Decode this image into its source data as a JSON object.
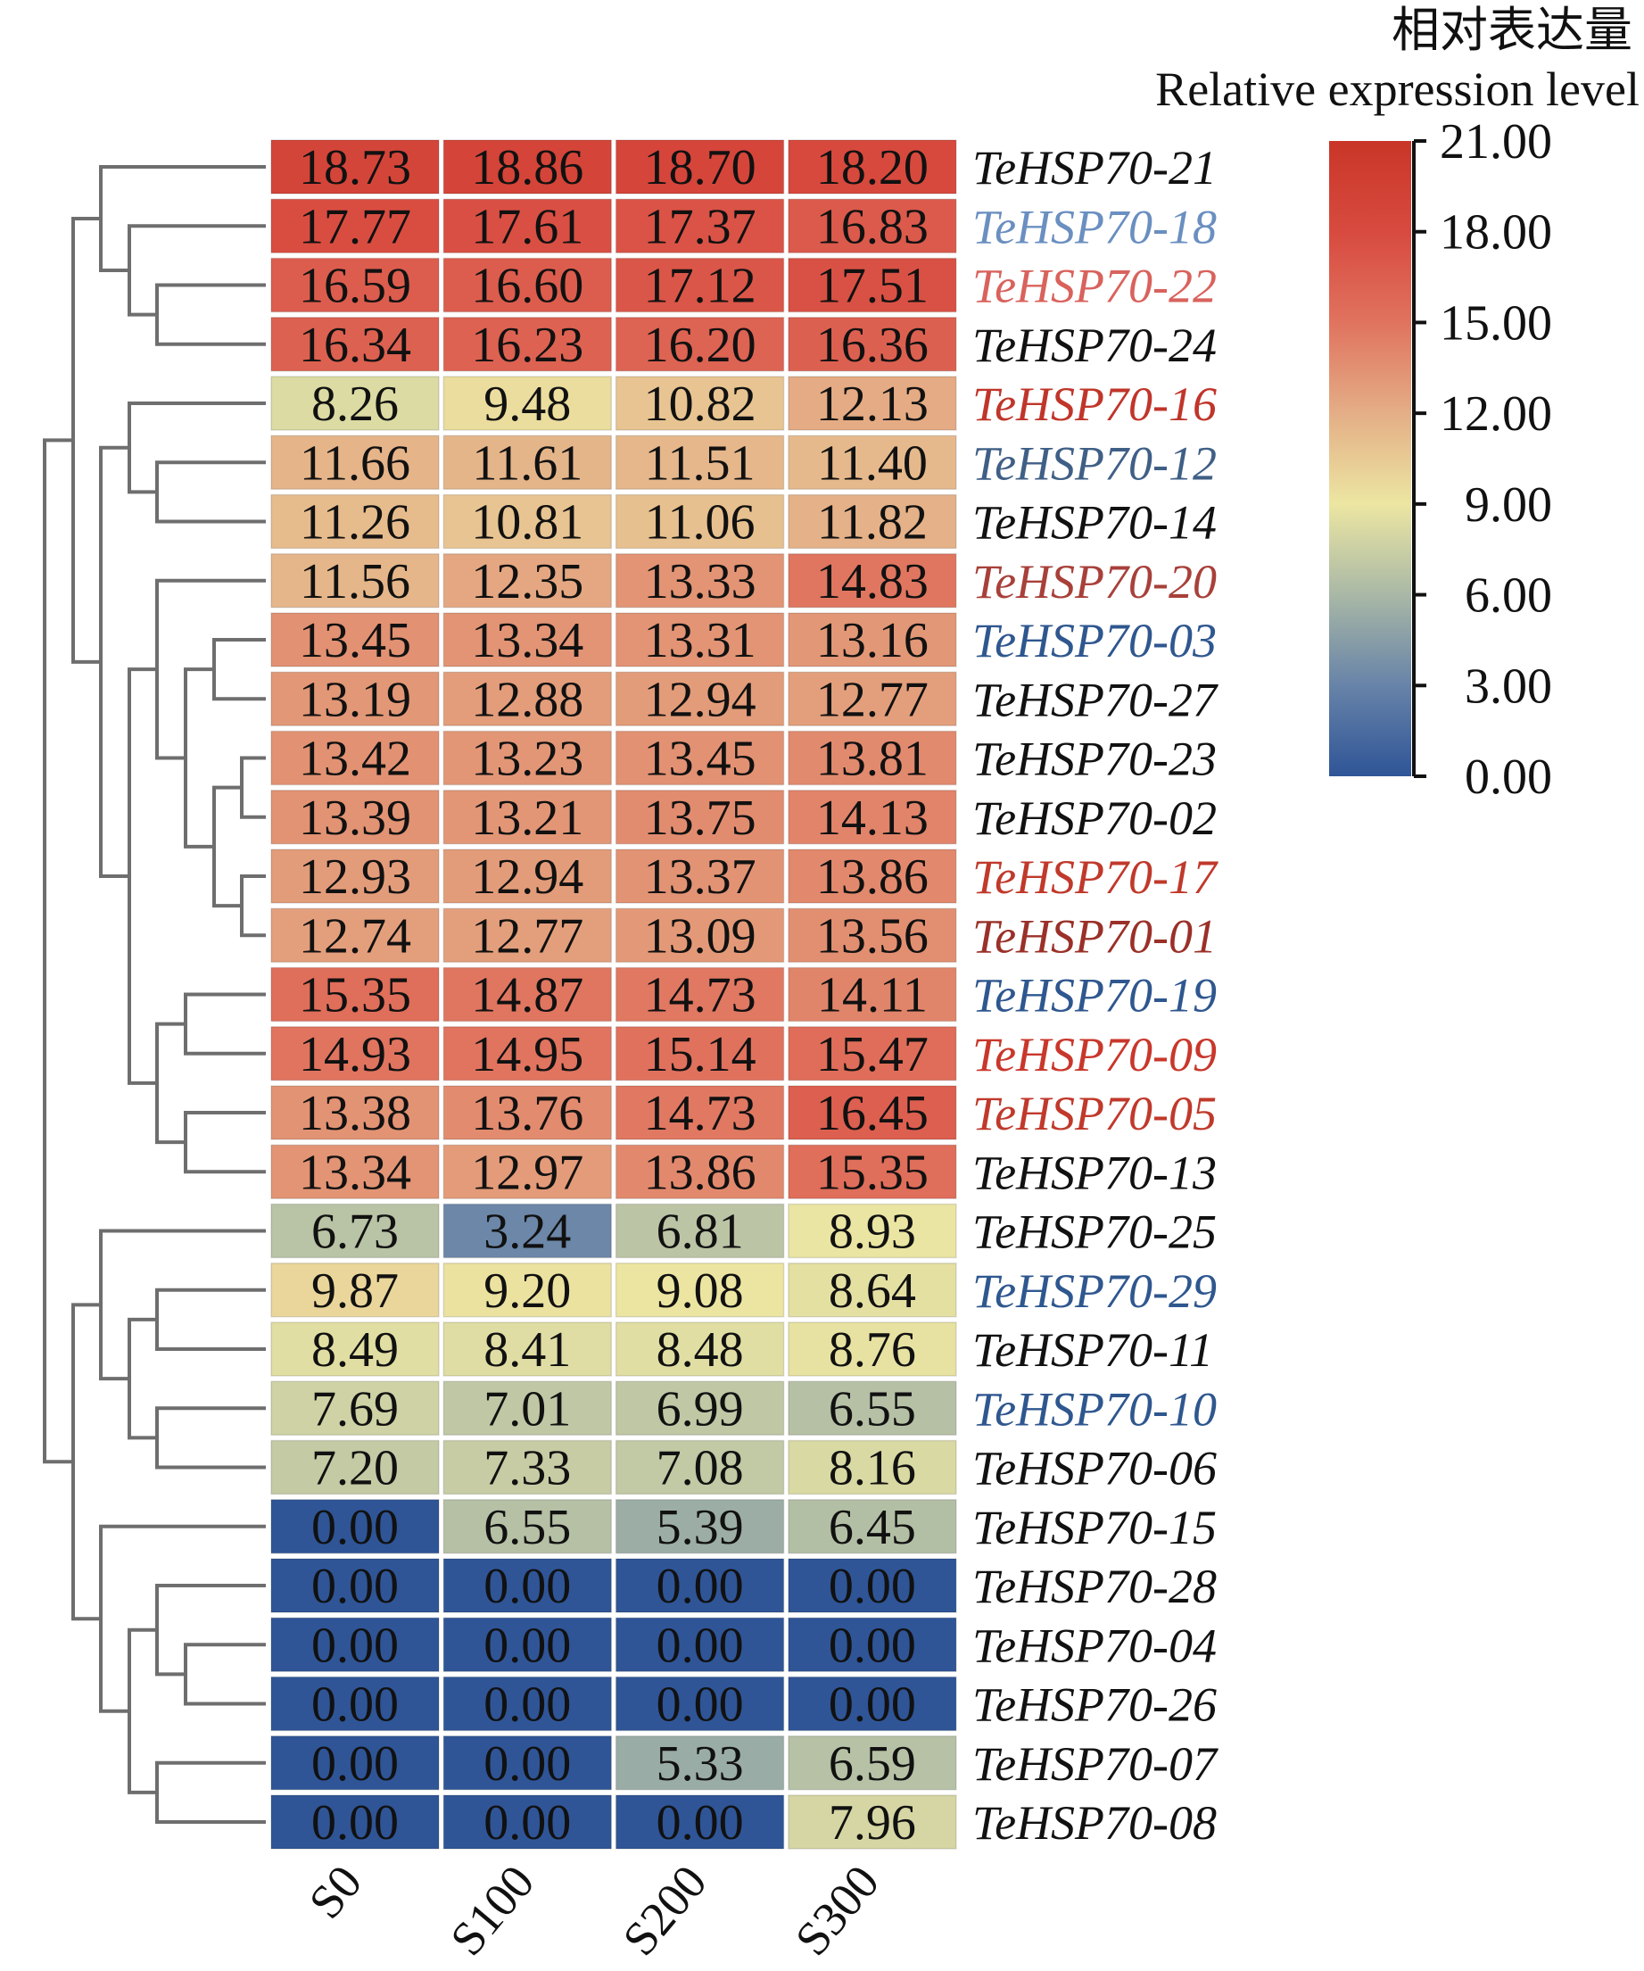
{
  "chart_data": {
    "type": "heatmap",
    "title": "",
    "legend_title_zh": "相对表达量",
    "legend_title_en": "Relative expression level",
    "legend_placement": "top-right",
    "colorbar": {
      "min": 0,
      "max": 21,
      "ticks": [
        "0.00",
        "3.00",
        "6.00",
        "9.00",
        "12.00",
        "15.00",
        "18.00",
        "21.00"
      ],
      "tick_values": [
        0,
        3,
        6,
        9,
        12,
        15,
        18,
        21
      ],
      "color_stops": [
        {
          "value": 0,
          "color": "#2f5597"
        },
        {
          "value": 3,
          "color": "#6783a8"
        },
        {
          "value": 6,
          "color": "#a9b8a6"
        },
        {
          "value": 9,
          "color": "#ece6a2"
        },
        {
          "value": 12,
          "color": "#e4ae86"
        },
        {
          "value": 15,
          "color": "#e0735e"
        },
        {
          "value": 18,
          "color": "#d84a3f"
        },
        {
          "value": 21,
          "color": "#c93628"
        }
      ]
    },
    "columns": [
      "S0",
      "S100",
      "S200",
      "S300"
    ],
    "rows": [
      {
        "gene": "TeHSP70-21",
        "label_color": "#111111",
        "values": [
          18.73,
          18.86,
          18.7,
          18.2
        ]
      },
      {
        "gene": "TeHSP70-18",
        "label_color": "#6a8fc0",
        "values": [
          17.77,
          17.61,
          17.37,
          16.83
        ]
      },
      {
        "gene": "TeHSP70-22",
        "label_color": "#d9625c",
        "values": [
          16.59,
          16.6,
          17.12,
          17.51
        ]
      },
      {
        "gene": "TeHSP70-24",
        "label_color": "#111111",
        "values": [
          16.34,
          16.23,
          16.2,
          16.36
        ]
      },
      {
        "gene": "TeHSP70-16",
        "label_color": "#c0352a",
        "values": [
          8.26,
          9.48,
          10.82,
          12.13
        ]
      },
      {
        "gene": "TeHSP70-12",
        "label_color": "#3f5f86",
        "values": [
          11.66,
          11.61,
          11.51,
          11.4
        ]
      },
      {
        "gene": "TeHSP70-14",
        "label_color": "#111111",
        "values": [
          11.26,
          10.81,
          11.06,
          11.82
        ]
      },
      {
        "gene": "TeHSP70-20",
        "label_color": "#a8403a",
        "values": [
          11.56,
          12.35,
          13.33,
          14.83
        ]
      },
      {
        "gene": "TeHSP70-03",
        "label_color": "#2f578f",
        "values": [
          13.45,
          13.34,
          13.31,
          13.16
        ]
      },
      {
        "gene": "TeHSP70-27",
        "label_color": "#111111",
        "values": [
          13.19,
          12.88,
          12.94,
          12.77
        ]
      },
      {
        "gene": "TeHSP70-23",
        "label_color": "#111111",
        "values": [
          13.42,
          13.23,
          13.45,
          13.81
        ]
      },
      {
        "gene": "TeHSP70-02",
        "label_color": "#111111",
        "values": [
          13.39,
          13.21,
          13.75,
          14.13
        ]
      },
      {
        "gene": "TeHSP70-17",
        "label_color": "#c0392b",
        "values": [
          12.93,
          12.94,
          13.37,
          13.86
        ]
      },
      {
        "gene": "TeHSP70-01",
        "label_color": "#9a3028",
        "values": [
          12.74,
          12.77,
          13.09,
          13.56
        ]
      },
      {
        "gene": "TeHSP70-19",
        "label_color": "#2f578f",
        "values": [
          15.35,
          14.87,
          14.73,
          14.11
        ]
      },
      {
        "gene": "TeHSP70-09",
        "label_color": "#c9372b",
        "values": [
          14.93,
          14.95,
          15.14,
          15.47
        ]
      },
      {
        "gene": "TeHSP70-05",
        "label_color": "#c0392b",
        "values": [
          13.38,
          13.76,
          14.73,
          16.45
        ]
      },
      {
        "gene": "TeHSP70-13",
        "label_color": "#111111",
        "values": [
          13.34,
          12.97,
          13.86,
          15.35
        ]
      },
      {
        "gene": "TeHSP70-25",
        "label_color": "#111111",
        "values": [
          6.73,
          3.24,
          6.81,
          8.93
        ]
      },
      {
        "gene": "TeHSP70-29",
        "label_color": "#2f578f",
        "values": [
          9.87,
          9.2,
          9.08,
          8.64
        ]
      },
      {
        "gene": "TeHSP70-11",
        "label_color": "#111111",
        "values": [
          8.49,
          8.41,
          8.48,
          8.76
        ]
      },
      {
        "gene": "TeHSP70-10",
        "label_color": "#2f578f",
        "values": [
          7.69,
          7.01,
          6.99,
          6.55
        ]
      },
      {
        "gene": "TeHSP70-06",
        "label_color": "#111111",
        "values": [
          7.2,
          7.33,
          7.08,
          8.16
        ]
      },
      {
        "gene": "TeHSP70-15",
        "label_color": "#111111",
        "values": [
          0.0,
          6.55,
          5.39,
          6.45
        ]
      },
      {
        "gene": "TeHSP70-28",
        "label_color": "#111111",
        "values": [
          0.0,
          0.0,
          0.0,
          0.0
        ]
      },
      {
        "gene": "TeHSP70-04",
        "label_color": "#111111",
        "values": [
          0.0,
          0.0,
          0.0,
          0.0
        ]
      },
      {
        "gene": "TeHSP70-26",
        "label_color": "#111111",
        "values": [
          0.0,
          0.0,
          0.0,
          0.0
        ]
      },
      {
        "gene": "TeHSP70-07",
        "label_color": "#111111",
        "values": [
          0.0,
          0.0,
          5.33,
          6.59
        ]
      },
      {
        "gene": "TeHSP70-08",
        "label_color": "#111111",
        "values": [
          0.0,
          0.0,
          0.0,
          7.96
        ]
      }
    ],
    "row_dendrogram": {
      "description": "hierarchical clustering of genes; leaf indices refer to rows order",
      "tree": [
        [
          [
            0,
            [
              1,
              [
                2,
                3
              ]
            ]
          ],
          [
            [
              4,
              [
                5,
                6
              ]
            ],
            [
              [
                7,
                [
                  [
                    8,
                    9
                  ],
                  [
                    [
                      10,
                      11
                    ],
                    [
                      12,
                      13
                    ]
                  ]
                ]
              ],
              [
                [
                  14,
                  15
                ],
                [
                  16,
                  17
                ]
              ]
            ]
          ]
        ],
        [
          [
            18,
            [
              [
                19,
                20
              ],
              [
                21,
                22
              ]
            ]
          ],
          [
            23,
            [
              [
                24,
                [
                  25,
                  26
                ]
              ],
              [
                27,
                28
              ]
            ]
          ]
        ]
      ]
    },
    "cell_format": "0.00",
    "grid": false
  }
}
